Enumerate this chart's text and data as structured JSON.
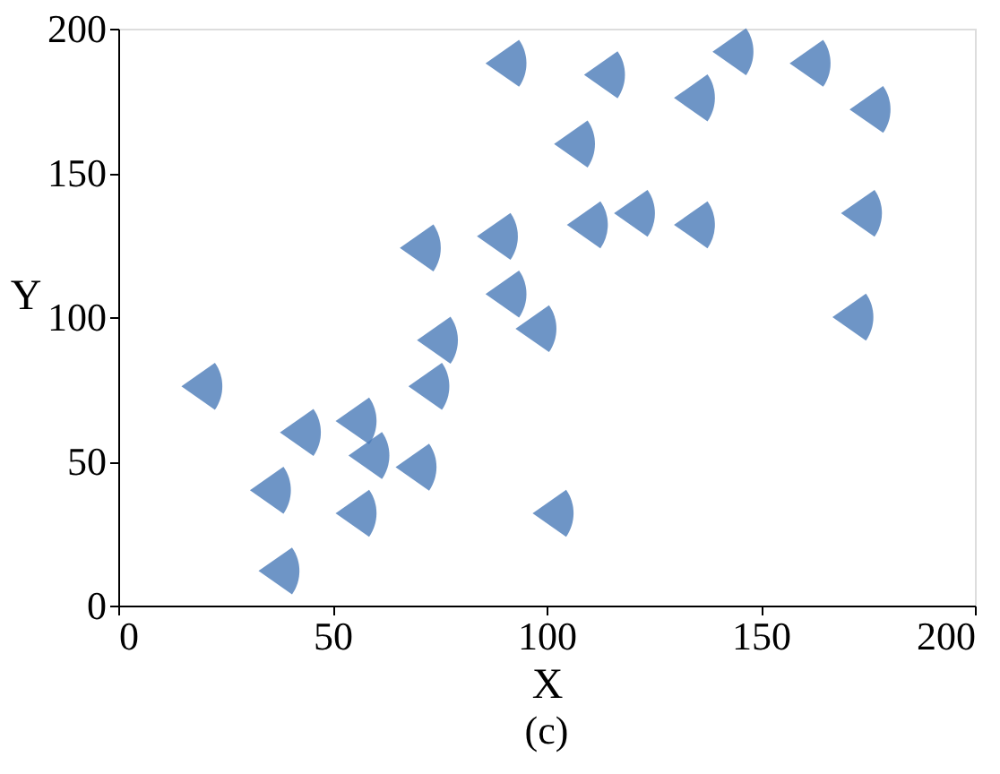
{
  "chart_data": {
    "type": "scatter",
    "xlabel": "X",
    "ylabel": "Y",
    "annotations": [
      "(c)"
    ],
    "x": [
      92,
      115,
      108,
      136,
      145,
      163,
      177,
      175,
      173,
      136,
      122,
      111,
      90,
      72,
      92,
      99,
      76,
      74,
      21,
      44,
      60,
      57,
      39,
      103,
      37,
      57,
      71
    ],
    "series": [
      {
        "color": "#4a7ab8",
        "values": [
          188,
          184,
          160,
          176,
          192,
          188,
          172,
          136,
          100,
          132,
          136,
          132,
          128,
          124,
          108,
          96,
          92,
          76,
          76,
          60,
          52,
          32,
          12,
          32,
          40,
          64,
          48
        ]
      }
    ],
    "xlim": [
      0,
      200
    ],
    "ylim": [
      0,
      200
    ],
    "xticks": [
      0,
      50,
      100,
      150,
      200
    ],
    "yticks": [
      0,
      50,
      100,
      150,
      200
    ],
    "grid": false
  }
}
